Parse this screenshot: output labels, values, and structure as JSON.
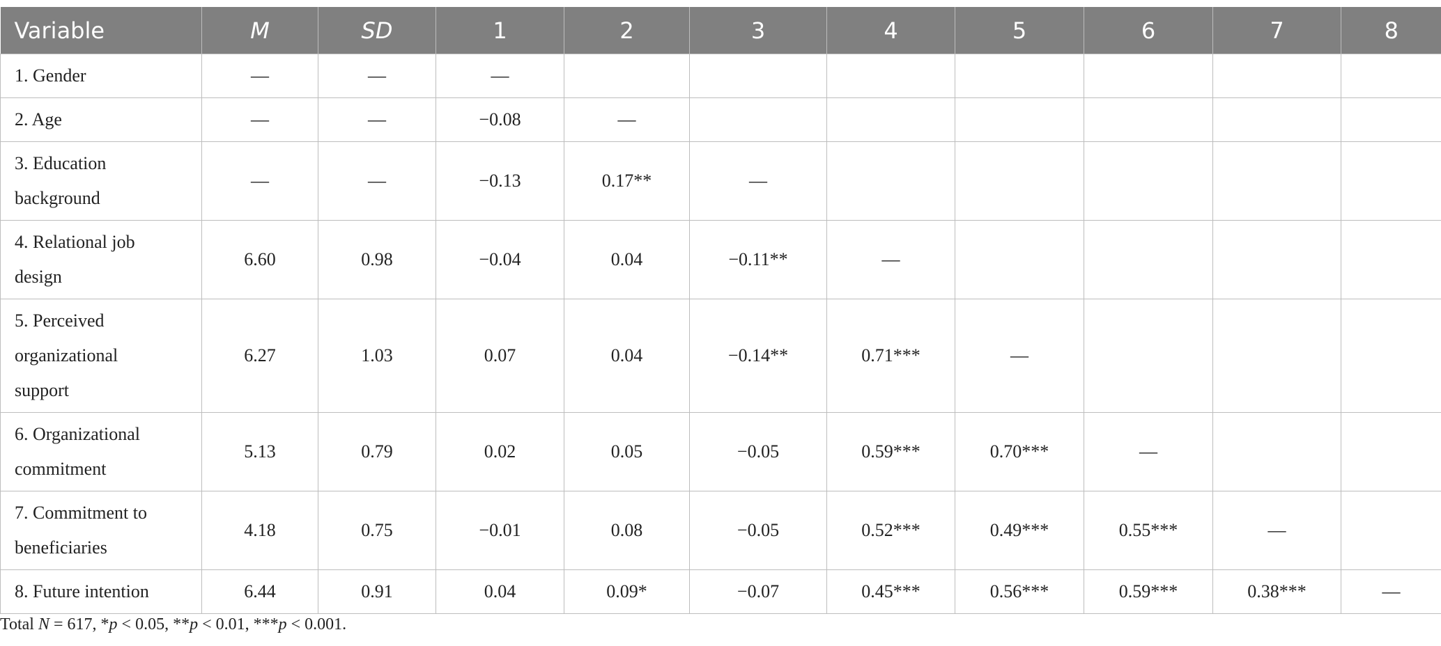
{
  "table": {
    "header": [
      "Variable",
      "M",
      "SD",
      "1",
      "2",
      "3",
      "4",
      "5",
      "6",
      "7",
      "8"
    ],
    "rows": [
      [
        "1. Gender",
        "—",
        "—",
        "—",
        null,
        null,
        null,
        null,
        null,
        null,
        null
      ],
      [
        "2. Age",
        "—",
        "—",
        "−0.08",
        "—",
        null,
        null,
        null,
        null,
        null,
        null
      ],
      [
        "3. Education background",
        "—",
        "—",
        "−0.13",
        "0.17**",
        "—",
        null,
        null,
        null,
        null,
        null
      ],
      [
        "4. Relational job design",
        "6.60",
        "0.98",
        "−0.04",
        "0.04",
        "−0.11**",
        "—",
        null,
        null,
        null,
        null
      ],
      [
        "5. Perceived organizational support",
        "6.27",
        "1.03",
        "0.07",
        "0.04",
        "−0.14**",
        "0.71***",
        "—",
        null,
        null,
        null
      ],
      [
        "6. Organizational commitment",
        "5.13",
        "0.79",
        "0.02",
        "0.05",
        "−0.05",
        "0.59***",
        "0.70***",
        "—",
        null,
        null
      ],
      [
        "7. Commitment to beneficiaries",
        "4.18",
        "0.75",
        "−0.01",
        "0.08",
        "−0.05",
        "0.52***",
        "0.49***",
        "0.55***",
        "—",
        null
      ],
      [
        "8. Future intention",
        "6.44",
        "0.91",
        "0.04",
        "0.09*",
        "−0.07",
        "0.45***",
        "0.56***",
        "0.59***",
        "0.38***",
        "—"
      ]
    ]
  },
  "footnote": [
    "Total ",
    "N",
    " = 617, *",
    "p",
    " < 0.05, **",
    "p",
    " < 0.01, ***",
    "p",
    " < 0.001."
  ]
}
